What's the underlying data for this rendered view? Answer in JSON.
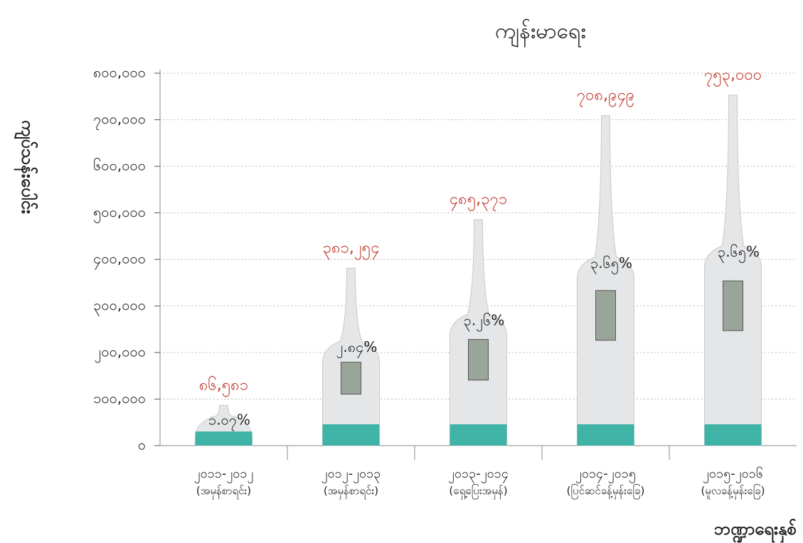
{
  "chart_data": {
    "type": "thermometer-bar",
    "title": "ကျန်းမာရေး",
    "y_label": "ကျပ်သန်းပေါင်း",
    "x_label": "ဘဏ္ဍာရေးနှစ်",
    "categories": [
      [
        "၂၀၁၁-၂၀၁၂",
        "(အမှန်စာရင်း)"
      ],
      [
        "၂၀၁၂-၂၀၁၃",
        "(အမှန်စာရင်း)"
      ],
      [
        "၂၀၁၃-၂၀၁၄",
        "(ရှေ့ပြေးအမှန်)"
      ],
      [
        "၂၀၁၄-၂၀၁၅",
        "(ပြင်ဆင်ခန့်မှန်းခြေ)"
      ],
      [
        "၂၀၁၅-၂၀၁၆",
        "(မူလခန့်မှန်းခြေ)"
      ]
    ],
    "values": [
      86581,
      381254,
      485371,
      708949,
      753000
    ],
    "value_labels": [
      "၈၆,၅၈၁",
      "၃၈၁,၂၅၄",
      "၄၈၅,၃၇၁",
      "၇၀၈,၉၄၉",
      "၇၅၃,၀၀၀"
    ],
    "share_labels": [
      "၁.၀၇%",
      "၂.၈၄%",
      "၃.၂၆%",
      "၃.၆၅%",
      "၃.၆၅%"
    ],
    "color": "#e4e6e8",
    "accent_color": "#3fb3a6",
    "label_color": "#c0392b",
    "ylim": [
      0,
      800000
    ],
    "yticks": [
      {
        "value": 0,
        "label": "၀"
      },
      {
        "value": 100000,
        "label": "၁၀၀,၀၀၀"
      },
      {
        "value": 200000,
        "label": "၂၀၀,၀၀၀"
      },
      {
        "value": 300000,
        "label": "၃၀၀,၀၀၀"
      },
      {
        "value": 400000,
        "label": "၄၀၀,၀၀၀"
      },
      {
        "value": 500000,
        "label": "၅၀၀,၀၀၀"
      },
      {
        "value": 600000,
        "label": "၆၀၀,၀၀၀"
      },
      {
        "value": 700000,
        "label": "၇၀၀,၀၀၀"
      },
      {
        "value": 800000,
        "label": "၈၀၀,၀၀၀"
      }
    ],
    "grid": true
  }
}
